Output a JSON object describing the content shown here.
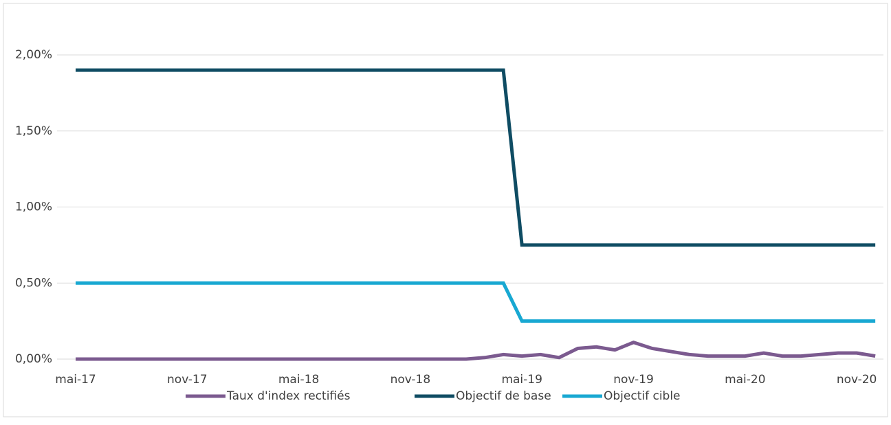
{
  "chart_data": {
    "type": "line",
    "categories": [
      "mai-17",
      null,
      null,
      null,
      null,
      null,
      "nov-17",
      null,
      null,
      null,
      null,
      null,
      "mai-18",
      null,
      null,
      null,
      null,
      null,
      "nov-18",
      null,
      null,
      null,
      null,
      null,
      "mai-19",
      null,
      null,
      null,
      null,
      null,
      "nov-19",
      null,
      null,
      null,
      null,
      null,
      "mai-20",
      null,
      null,
      null,
      null,
      null,
      "nov-20",
      null
    ],
    "series": [
      {
        "name": "Taux d'index rectifiés",
        "color": "#7b5a8f",
        "values": [
          0,
          0,
          0,
          0,
          0,
          0,
          0,
          0,
          0,
          0,
          0,
          0,
          0,
          0,
          0,
          0,
          0,
          0,
          0,
          0,
          0,
          0,
          0.01,
          0.03,
          0.02,
          0.03,
          0.01,
          0.07,
          0.08,
          0.06,
          0.11,
          0.07,
          0.05,
          0.03,
          0.02,
          0.02,
          0.02,
          0.04,
          0.02,
          0.02,
          0.03,
          0.04,
          0.04,
          0.02
        ]
      },
      {
        "name": "Objectif de base",
        "color": "#0f4c63",
        "values": [
          1.9,
          1.9,
          1.9,
          1.9,
          1.9,
          1.9,
          1.9,
          1.9,
          1.9,
          1.9,
          1.9,
          1.9,
          1.9,
          1.9,
          1.9,
          1.9,
          1.9,
          1.9,
          1.9,
          1.9,
          1.9,
          1.9,
          1.9,
          1.9,
          0.75,
          0.75,
          0.75,
          0.75,
          0.75,
          0.75,
          0.75,
          0.75,
          0.75,
          0.75,
          0.75,
          0.75,
          0.75,
          0.75,
          0.75,
          0.75,
          0.75,
          0.75,
          0.75,
          0.75
        ]
      },
      {
        "name": "Objectif cible",
        "color": "#18a8d2",
        "values": [
          0.5,
          0.5,
          0.5,
          0.5,
          0.5,
          0.5,
          0.5,
          0.5,
          0.5,
          0.5,
          0.5,
          0.5,
          0.5,
          0.5,
          0.5,
          0.5,
          0.5,
          0.5,
          0.5,
          0.5,
          0.5,
          0.5,
          0.5,
          0.5,
          0.25,
          0.25,
          0.25,
          0.25,
          0.25,
          0.25,
          0.25,
          0.25,
          0.25,
          0.25,
          0.25,
          0.25,
          0.25,
          0.25,
          0.25,
          0.25,
          0.25,
          0.25,
          0.25,
          0.25
        ]
      }
    ],
    "ylim": [
      0,
      2
    ],
    "yticks": [
      {
        "value": 0,
        "label": "0,00%"
      },
      {
        "value": 0.5,
        "label": "0,50%"
      },
      {
        "value": 1,
        "label": "1,00%"
      },
      {
        "value": 1.5,
        "label": "1,50%"
      },
      {
        "value": 2,
        "label": "2,00%"
      }
    ],
    "grid": true,
    "legend": "bottom"
  }
}
